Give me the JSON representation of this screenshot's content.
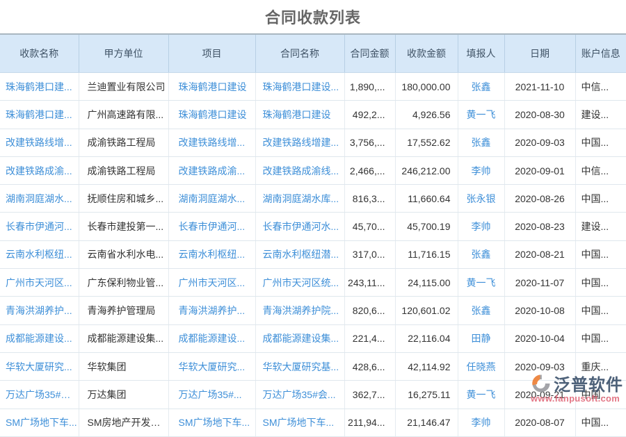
{
  "page": {
    "title": "合同收款列表"
  },
  "table": {
    "columns": [
      {
        "key": "payment-name",
        "label": "收款名称"
      },
      {
        "key": "party-a-unit",
        "label": "甲方单位"
      },
      {
        "key": "project",
        "label": "项目"
      },
      {
        "key": "contract-name",
        "label": "合同名称"
      },
      {
        "key": "contract-amount",
        "label": "合同金额"
      },
      {
        "key": "payment-amount",
        "label": "收款金额"
      },
      {
        "key": "reporter",
        "label": "填报人"
      },
      {
        "key": "date",
        "label": "日期"
      },
      {
        "key": "account-info",
        "label": "账户信息"
      }
    ],
    "link_columns": [
      0,
      2,
      3,
      6
    ],
    "rows": [
      [
        "珠海鹤港口建...",
        "兰迪置业有限公司",
        "珠海鹤港口建设",
        "珠海鹤港口建设...",
        "1,890,...",
        "180,000.00",
        "张鑫",
        "2021-11-10",
        "中信..."
      ],
      [
        "珠海鹤港口建...",
        "广州高速路有限...",
        "珠海鹤港口建设",
        "珠海鹤港口建设",
        "492,2...",
        "4,926.56",
        "黄一飞",
        "2020-08-30",
        "建设..."
      ],
      [
        "改建铁路线增...",
        "成渝铁路工程局",
        "改建铁路线增...",
        "改建铁路线增建...",
        "3,756,...",
        "17,552.62",
        "张鑫",
        "2020-09-03",
        "中国..."
      ],
      [
        "改建铁路成渝...",
        "成渝铁路工程局",
        "改建铁路成渝...",
        "改建铁路成渝线...",
        "2,466,...",
        "246,212.00",
        "李帅",
        "2020-09-01",
        "中信..."
      ],
      [
        "湖南洞庭湖水...",
        "抚顺住房和城乡...",
        "湖南洞庭湖水...",
        "湖南洞庭湖水库...",
        "816,3...",
        "11,660.64",
        "张永银",
        "2020-08-26",
        "中国..."
      ],
      [
        "长春市伊通河...",
        "长春市建投第一...",
        "长春市伊通河...",
        "长春市伊通河水...",
        "45,70...",
        "45,700.19",
        "李帅",
        "2020-08-23",
        "建设..."
      ],
      [
        "云南水利枢纽...",
        "云南省水利水电...",
        "云南水利枢纽...",
        "云南水利枢纽潜...",
        "317,0...",
        "11,716.15",
        "张鑫",
        "2020-08-21",
        "中国..."
      ],
      [
        "广州市天河区...",
        "广东保利物业管...",
        "广州市天河区...",
        "广州市天河区统...",
        "243,11...",
        "24,115.00",
        "黄一飞",
        "2020-11-07",
        "中国..."
      ],
      [
        "青海洪湖养护...",
        "青海养护管理局",
        "青海洪湖养护...",
        "青海洪湖养护院...",
        "820,6...",
        "120,601.02",
        "张鑫",
        "2020-10-08",
        "中国..."
      ],
      [
        "成都能源建设...",
        "成都能源建设集...",
        "成都能源建设...",
        "成都能源建设集...",
        "221,4...",
        "22,116.04",
        "田静",
        "2020-10-04",
        "中国..."
      ],
      [
        "华软大厦研究...",
        "华软集团",
        "华软大厦研究...",
        "华软大厦研究基...",
        "428,6...",
        "42,114.92",
        "任晓燕",
        "2020-09-03",
        "重庆..."
      ],
      [
        "万达广场35#会...",
        "万达集团",
        "万达广场35#...",
        "万达广场35#会...",
        "362,7...",
        "16,275.11",
        "黄一飞",
        "2020-09-21",
        "中国..."
      ],
      [
        "SM广场地下车...",
        "SM房地产开发有...",
        "SM广场地下车...",
        "SM广场地下车...",
        "211,94...",
        "21,146.47",
        "李帅",
        "2020-08-07",
        "中国..."
      ]
    ]
  },
  "watermark": {
    "brand": "泛普软件",
    "url": "www.fanpusoft.com"
  },
  "colors": {
    "link": "#3E8FD8",
    "header_bg": "#D7E8F8",
    "header_text": "#3F5265",
    "body_text": "#333333",
    "title_text": "#666666",
    "watermark_brand": "#3A506B",
    "watermark_url": "#E0697A",
    "logo_orange": "#ED7D31",
    "logo_gray": "#9A9BA0"
  }
}
